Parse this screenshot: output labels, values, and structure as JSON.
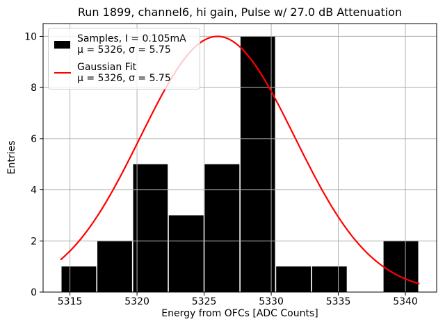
{
  "title": "Run 1899, channel6, hi gain, Pulse w/ 27.0 dB Attenuation",
  "axes": {
    "xlabel": "Energy from OFCs [ADC Counts]",
    "ylabel": "Entries"
  },
  "legend": {
    "position": "upper left",
    "items": [
      {
        "swatch": "black-patch",
        "line1": "Samples, I = 0.105mA",
        "line2": "μ = 5326, σ = 5.75"
      },
      {
        "swatch": "red-line",
        "line1": "Gaussian Fit",
        "line2": "μ = 5326, σ = 5.75"
      }
    ]
  },
  "colors": {
    "bar": "#000000",
    "fit_line": "#ff0000",
    "grid": "#b0b0b0",
    "spine": "#000000",
    "legend_border": "#cccccc",
    "background": "#ffffff"
  },
  "chart_data": {
    "type": "bar",
    "subtype": "histogram",
    "title": "Run 1899, channel6, hi gain, Pulse w/ 27.0 dB Attenuation",
    "xlabel": "Energy from OFCs [ADC Counts]",
    "ylabel": "Entries",
    "bin_edges": [
      5314.33,
      5317.0,
      5319.67,
      5322.33,
      5325.0,
      5327.67,
      5330.33,
      5333.0,
      5335.67,
      5338.33,
      5341.0
    ],
    "counts": [
      1,
      2,
      5,
      3,
      5,
      10,
      1,
      1,
      0,
      2
    ],
    "total_entries": 30,
    "series": [
      {
        "name": "Samples, I = 0.105mA",
        "mu": 5326,
        "sigma": 5.75
      },
      {
        "name": "Gaussian Fit",
        "mu": 5326,
        "sigma": 5.75
      }
    ],
    "gaussian_fit": {
      "mu": 5326,
      "sigma": 5.75,
      "amplitude": 10,
      "x_start": 5314.33,
      "x_end": 5341.0
    },
    "xlim": [
      5313.0,
      5342.33
    ],
    "ylim": [
      0,
      10.5
    ],
    "xticks": [
      5315,
      5320,
      5325,
      5330,
      5335,
      5340
    ],
    "yticks": [
      0,
      2,
      4,
      6,
      8,
      10
    ],
    "grid": true,
    "grid_above_bars": true,
    "legend_position": "upper left"
  }
}
